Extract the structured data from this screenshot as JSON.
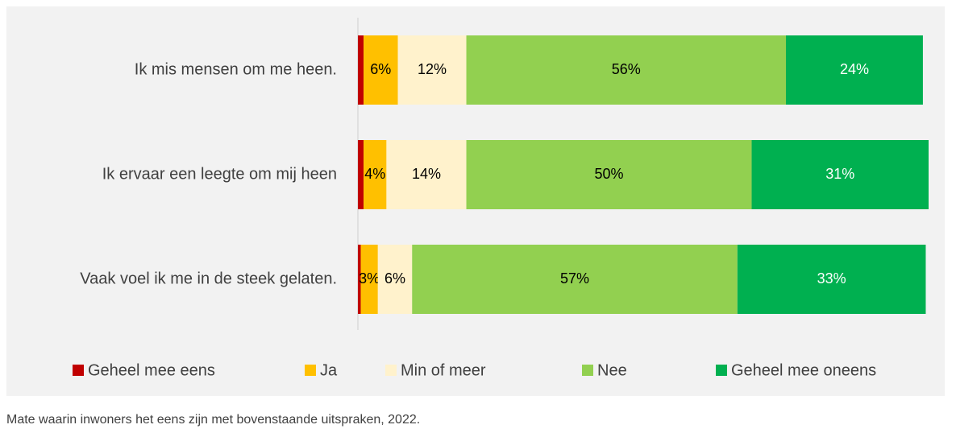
{
  "chart_data": {
    "type": "stacked-hbar",
    "categories": [
      "Ik mis mensen om me heen.",
      "Ik ervaar een leegte om mij heen",
      "Vaak voel ik me in de steek gelaten."
    ],
    "series": [
      {
        "name": "Geheel mee eens",
        "color": "#c00000",
        "values": [
          1,
          1,
          0.5
        ],
        "value_labels": [
          null,
          null,
          null
        ]
      },
      {
        "name": "Ja",
        "color": "#ffc000",
        "values": [
          6,
          4,
          3
        ],
        "value_labels": [
          "6%",
          "4%",
          "3%"
        ]
      },
      {
        "name": "Min of meer",
        "color": "#fff2cc",
        "values": [
          12,
          14,
          6
        ],
        "value_labels": [
          "12%",
          "14%",
          "6%"
        ]
      },
      {
        "name": "Nee",
        "color": "#92d050",
        "values": [
          56,
          50,
          57
        ],
        "value_labels": [
          "56%",
          "50%",
          "57%"
        ]
      },
      {
        "name": "Geheel mee oneens",
        "color": "#00b050",
        "values": [
          24,
          31,
          33
        ],
        "value_labels": [
          "24%",
          "31%",
          "33%"
        ]
      }
    ],
    "xlim": [
      0,
      100
    ],
    "caption": "Mate waarin inwoners het eens zijn met bovenstaande uitspraken, 2022."
  }
}
